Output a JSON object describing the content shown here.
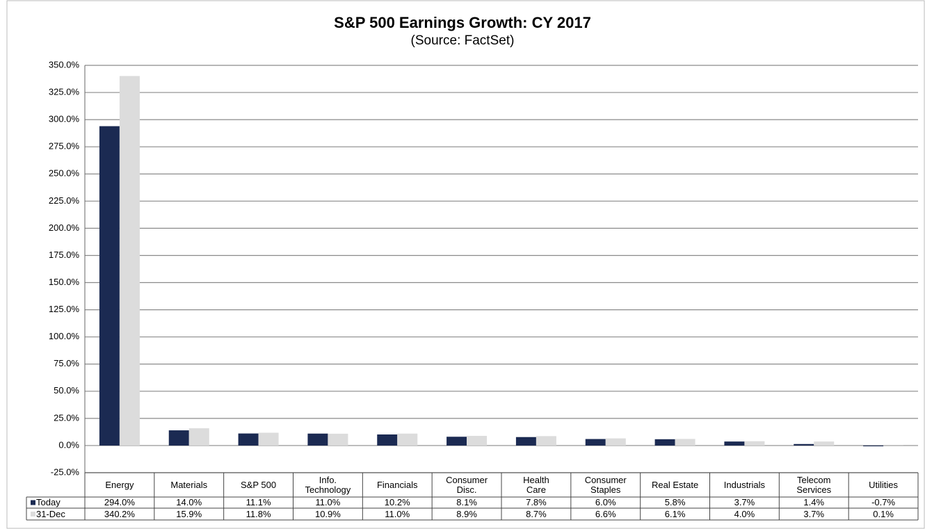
{
  "chart_data": {
    "type": "bar",
    "title": "S&P 500 Earnings Growth: CY 2017",
    "subtitle": "(Source: FactSet)",
    "categories": [
      "Energy",
      "Materials",
      "S&P 500",
      "Info.\nTechnology",
      "Financials",
      "Consumer\nDisc.",
      "Health\nCare",
      "Consumer\nStaples",
      "Real Estate",
      "Industrials",
      "Telecom\nServices",
      "Utilities"
    ],
    "series": [
      {
        "name": "Today",
        "color": "#1b2a52",
        "values": [
          294.0,
          14.0,
          11.1,
          11.0,
          10.2,
          8.1,
          7.8,
          6.0,
          5.8,
          3.7,
          1.4,
          -0.7
        ],
        "value_labels": [
          "294.0%",
          "14.0%",
          "11.1%",
          "11.0%",
          "10.2%",
          "8.1%",
          "7.8%",
          "6.0%",
          "5.8%",
          "3.7%",
          "1.4%",
          "-0.7%"
        ]
      },
      {
        "name": "31-Dec",
        "color": "#dcdcdc",
        "values": [
          340.2,
          15.9,
          11.8,
          10.9,
          11.0,
          8.9,
          8.7,
          6.6,
          6.1,
          4.0,
          3.7,
          0.1
        ],
        "value_labels": [
          "340.2%",
          "15.9%",
          "11.8%",
          "10.9%",
          "11.0%",
          "8.9%",
          "8.7%",
          "6.6%",
          "6.1%",
          "4.0%",
          "3.7%",
          "0.1%"
        ]
      }
    ],
    "ylim": [
      -25,
      350
    ],
    "yticks": [
      {
        "value": -25,
        "label": "-25.0%"
      },
      {
        "value": 0,
        "label": "0.0%"
      },
      {
        "value": 25,
        "label": "25.0%"
      },
      {
        "value": 50,
        "label": "50.0%"
      },
      {
        "value": 75,
        "label": "75.0%"
      },
      {
        "value": 100,
        "label": "100.0%"
      },
      {
        "value": 125,
        "label": "125.0%"
      },
      {
        "value": 150,
        "label": "150.0%"
      },
      {
        "value": 175,
        "label": "175.0%"
      },
      {
        "value": 200,
        "label": "200.0%"
      },
      {
        "value": 225,
        "label": "225.0%"
      },
      {
        "value": 250,
        "label": "250.0%"
      },
      {
        "value": 275,
        "label": "275.0%"
      },
      {
        "value": 300,
        "label": "300.0%"
      },
      {
        "value": 325,
        "label": "325.0%"
      },
      {
        "value": 350,
        "label": "350.0%"
      }
    ],
    "grid": true
  }
}
